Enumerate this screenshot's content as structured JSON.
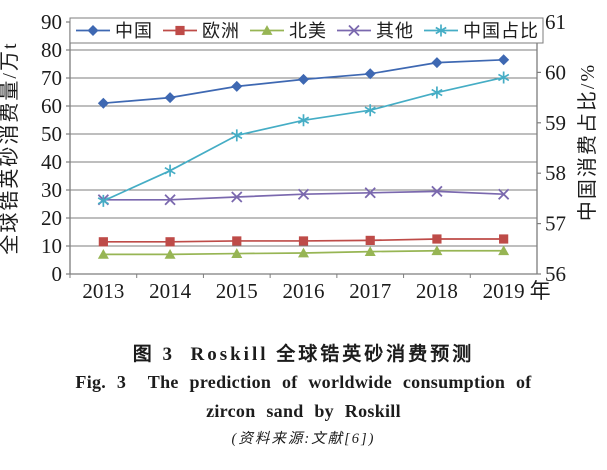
{
  "figure": {
    "caption": {
      "title_cn": "图 3  Roskill 全球锆英砂消费预测",
      "title_en_line1": "Fig. 3  The prediction of worldwide consumption of",
      "title_en_line2": "zircon sand by Roskill",
      "source": "(资料来源:文献[6])"
    }
  },
  "chart_data": {
    "type": "line",
    "title": "Roskill 全球锆英砂消费预测",
    "categories": [
      "2013",
      "2014",
      "2015",
      "2016",
      "2017",
      "2018",
      "2019"
    ],
    "x_unit": "年",
    "grid": true,
    "legend_position": "top",
    "axis_color": "#7d7d7d",
    "text_color": "#1c1c1c",
    "y_left": {
      "label": "全球锆英砂消费量/万t",
      "min": 0,
      "max": 90,
      "step": 10
    },
    "y_right": {
      "label": "中国消费占比/%",
      "min": 56,
      "max": 61,
      "step": 1
    },
    "series": [
      {
        "id": "china",
        "name": "中国",
        "axis": "left",
        "marker": "diamond",
        "color": "#3E68B2",
        "values": [
          61,
          63,
          67,
          69.5,
          71.5,
          75.5,
          76.5
        ]
      },
      {
        "id": "europe",
        "name": "欧洲",
        "axis": "left",
        "marker": "square",
        "color": "#BE4B48",
        "values": [
          11.5,
          11.5,
          11.8,
          11.8,
          12,
          12.5,
          12.5
        ]
      },
      {
        "id": "north-america",
        "name": "北美",
        "axis": "left",
        "marker": "triangle",
        "color": "#97B554",
        "values": [
          7,
          7,
          7.3,
          7.5,
          8,
          8.3,
          8.3
        ]
      },
      {
        "id": "others",
        "name": "其他",
        "axis": "left",
        "marker": "x",
        "color": "#7A68AE",
        "values": [
          26.5,
          26.5,
          27.5,
          28.5,
          29,
          29.5,
          28.5
        ]
      },
      {
        "id": "china-share",
        "name": "中国占比",
        "axis": "right",
        "marker": "star",
        "color": "#45ADC5",
        "values": [
          57.45,
          58.05,
          58.75,
          59.05,
          59.25,
          59.6,
          59.9
        ]
      }
    ]
  }
}
